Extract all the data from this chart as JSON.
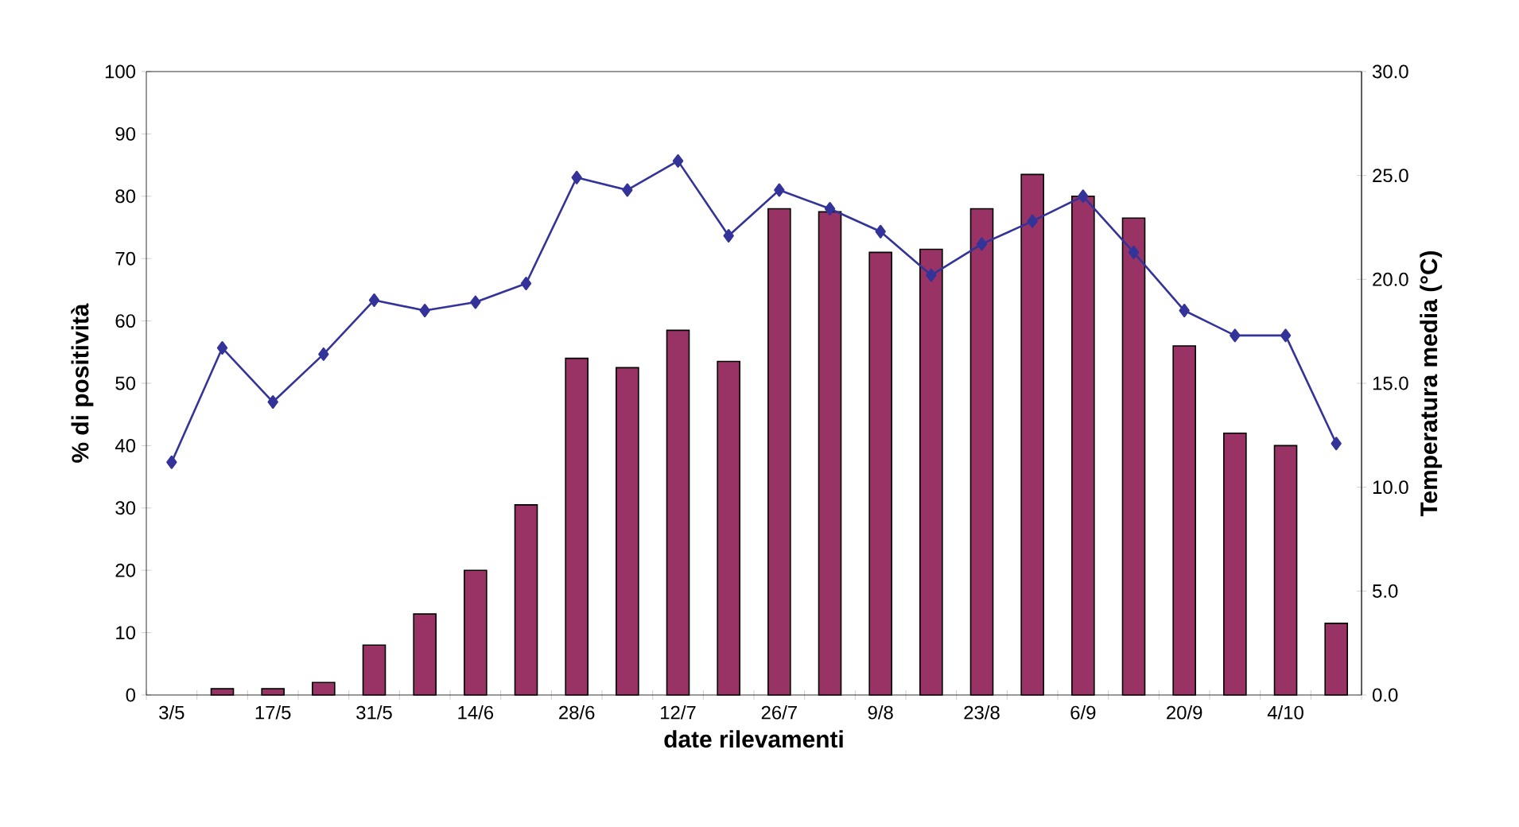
{
  "chart_data": {
    "type": "bar",
    "xlabel": "date rilevamenti",
    "ylabel": "% di  positività",
    "y2label": "Temperatura media (°C)",
    "categories": [
      "3/5",
      null,
      "17/5",
      null,
      "31/5",
      null,
      "14/6",
      null,
      "28/6",
      null,
      "12/7",
      null,
      "26/7",
      null,
      "9/8",
      null,
      "23/8",
      null,
      "6/9",
      null,
      "20/9",
      null,
      "4/10",
      null
    ],
    "series": [
      {
        "color": "#993366",
        "values": [
          null,
          1,
          1,
          2,
          8,
          13,
          20,
          30.5,
          54,
          52.5,
          58.5,
          53.5,
          78,
          77.5,
          71,
          71.5,
          78,
          83.5,
          80,
          76.5,
          56,
          42,
          40,
          11.5
        ]
      },
      {
        "type": "line",
        "axis": "y2",
        "color": "#333399",
        "marker": "diamond",
        "values": [
          11.2,
          16.7,
          14.1,
          16.4,
          19.0,
          18.5,
          18.9,
          19.8,
          24.9,
          24.3,
          25.7,
          22.1,
          24.3,
          23.4,
          22.3,
          20.2,
          21.7,
          22.8,
          24.0,
          21.3,
          18.5,
          17.3,
          17.3,
          12.1
        ]
      }
    ],
    "ylim": [
      0,
      100
    ],
    "yticks": [
      0,
      10,
      20,
      30,
      40,
      50,
      60,
      70,
      80,
      90,
      100
    ],
    "y2lim": [
      0,
      30
    ],
    "y2ticks": [
      {
        "value": 0,
        "label": "0.0"
      },
      {
        "value": 5,
        "label": "5.0"
      },
      {
        "value": 10,
        "label": "10.0"
      },
      {
        "value": 15,
        "label": "15.0"
      },
      {
        "value": 20,
        "label": "20.0"
      },
      {
        "value": 25,
        "label": "25.0"
      },
      {
        "value": 30,
        "label": "30.0"
      }
    ],
    "grid": false
  }
}
